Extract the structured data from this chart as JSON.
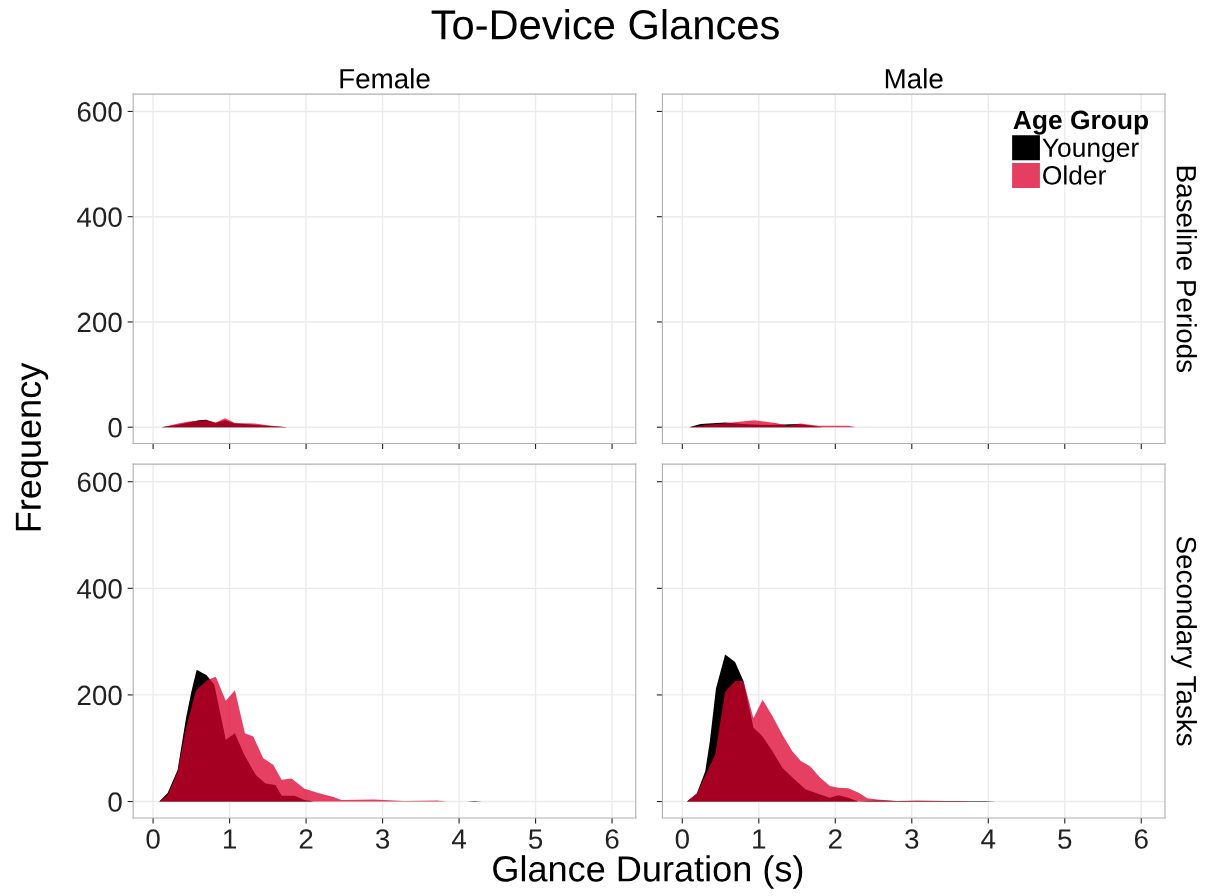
{
  "chart_data": [
    {
      "type": "area",
      "title": "To-Device Glances",
      "subtitle": "Female",
      "xlim": [
        -0.26,
        6.31
      ],
      "ylim": [
        -31,
        633
      ],
      "xticks": [
        0,
        1,
        2,
        3,
        4,
        5,
        6
      ],
      "yticks": [
        0,
        200,
        400,
        600
      ],
      "grid": true,
      "tick_labels": "y",
      "series": [
        {
          "color": "#000000",
          "x": [
            0.11,
            0.34,
            0.6,
            0.69,
            0.82,
            0.94,
            1.07,
            1.29,
            1.55,
            1.76
          ],
          "values": [
            0,
            5,
            13,
            14,
            8,
            13,
            7,
            5,
            2,
            0
          ]
        },
        {
          "color": "#dc002c",
          "x": [
            0.11,
            0.36,
            0.47,
            0.69,
            0.82,
            0.94,
            1.07,
            1.33,
            1.55,
            1.76
          ],
          "values": [
            0,
            8,
            11,
            13,
            9,
            17,
            8,
            7,
            3,
            0
          ]
        }
      ]
    },
    {
      "type": "area",
      "subtitle": "Male",
      "y2label": "Baseline Periods",
      "xlim": [
        -0.26,
        6.31
      ],
      "ylim": [
        -31,
        633
      ],
      "xticks": [
        0,
        1,
        2,
        3,
        4,
        5,
        6
      ],
      "yticks": [
        0,
        200,
        400,
        600
      ],
      "grid": true,
      "tick_labels": false,
      "legend": "top right",
      "legend_title": "Age Group",
      "series": [
        {
          "name": "Younger",
          "color": "#000000",
          "x": [
            0.09,
            0.24,
            0.56,
            0.79,
            1.14,
            1.52,
            1.74,
            1.83
          ],
          "values": [
            0,
            6,
            9,
            6,
            4,
            6,
            2,
            0
          ]
        },
        {
          "name": "Older",
          "color": "#dc002c",
          "x": [
            0.09,
            0.36,
            0.58,
            0.94,
            1.22,
            1.39,
            1.54,
            1.78,
            2.17,
            2.27
          ],
          "values": [
            0,
            5,
            8,
            13,
            8,
            3,
            7,
            3,
            3,
            0
          ]
        }
      ]
    },
    {
      "type": "area",
      "xlabel": "Glance Duration (s)",
      "ylabel": "Frequency",
      "xlim": [
        -0.26,
        6.31
      ],
      "ylim": [
        -31,
        633
      ],
      "xticks": [
        0,
        1,
        2,
        3,
        4,
        5,
        6
      ],
      "yticks": [
        0,
        200,
        400,
        600
      ],
      "grid": true,
      "series": [
        {
          "color": "#000000",
          "x": [
            0.08,
            0.19,
            0.32,
            0.43,
            0.5,
            0.57,
            0.7,
            0.8,
            0.95,
            1.07,
            1.19,
            1.34,
            1.47,
            1.6,
            1.68,
            1.85,
            1.98,
            2.1,
            4.1,
            4.2,
            4.3
          ],
          "values": [
            0,
            16,
            59,
            156,
            206,
            247,
            237,
            219,
            116,
            128,
            88,
            50,
            34,
            31,
            11,
            11,
            3,
            0,
            0,
            1,
            0
          ]
        },
        {
          "color": "#dc002c",
          "x": [
            0.08,
            0.19,
            0.32,
            0.43,
            0.56,
            0.71,
            0.82,
            0.95,
            1.07,
            1.2,
            1.31,
            1.44,
            1.57,
            1.68,
            1.81,
            1.98,
            2.16,
            2.37,
            2.46,
            2.89,
            3.28,
            3.71,
            3.84
          ],
          "values": [
            0,
            12,
            56,
            137,
            209,
            228,
            234,
            189,
            209,
            128,
            122,
            81,
            69,
            41,
            43,
            24,
            16,
            8,
            3,
            4,
            1,
            2,
            0
          ]
        }
      ]
    },
    {
      "type": "area",
      "y2label": "Secondary Tasks",
      "xlim": [
        -0.26,
        6.31
      ],
      "ylim": [
        -31,
        633
      ],
      "xticks": [
        0,
        1,
        2,
        3,
        4,
        5,
        6
      ],
      "yticks": [
        0,
        200,
        400,
        600
      ],
      "grid": true,
      "tick_labels": "x",
      "series": [
        {
          "color": "#000000",
          "x": [
            0.06,
            0.19,
            0.3,
            0.36,
            0.44,
            0.56,
            0.69,
            0.8,
            0.93,
            1.05,
            1.18,
            1.31,
            1.44,
            1.61,
            1.78,
            1.93,
            2.04,
            2.17,
            2.3,
            2.55,
            2.77,
            3.97,
            4.1
          ],
          "values": [
            0,
            15,
            57,
            113,
            212,
            276,
            262,
            226,
            139,
            122,
            94,
            63,
            45,
            23,
            14,
            7,
            12,
            7,
            0,
            2,
            1,
            1,
            0
          ]
        },
        {
          "color": "#dc002c",
          "x": [
            0.06,
            0.19,
            0.43,
            0.56,
            0.69,
            0.8,
            0.93,
            1.05,
            1.18,
            1.31,
            1.44,
            1.55,
            1.67,
            1.8,
            1.93,
            2.04,
            2.17,
            2.3,
            2.42,
            2.55,
            2.81,
            3.07,
            3.45,
            3.63,
            3.76
          ],
          "values": [
            0,
            15,
            88,
            206,
            226,
            226,
            156,
            191,
            160,
            125,
            94,
            76,
            66,
            45,
            29,
            26,
            25,
            17,
            6,
            4,
            1,
            2,
            1,
            1,
            0
          ]
        }
      ]
    }
  ]
}
